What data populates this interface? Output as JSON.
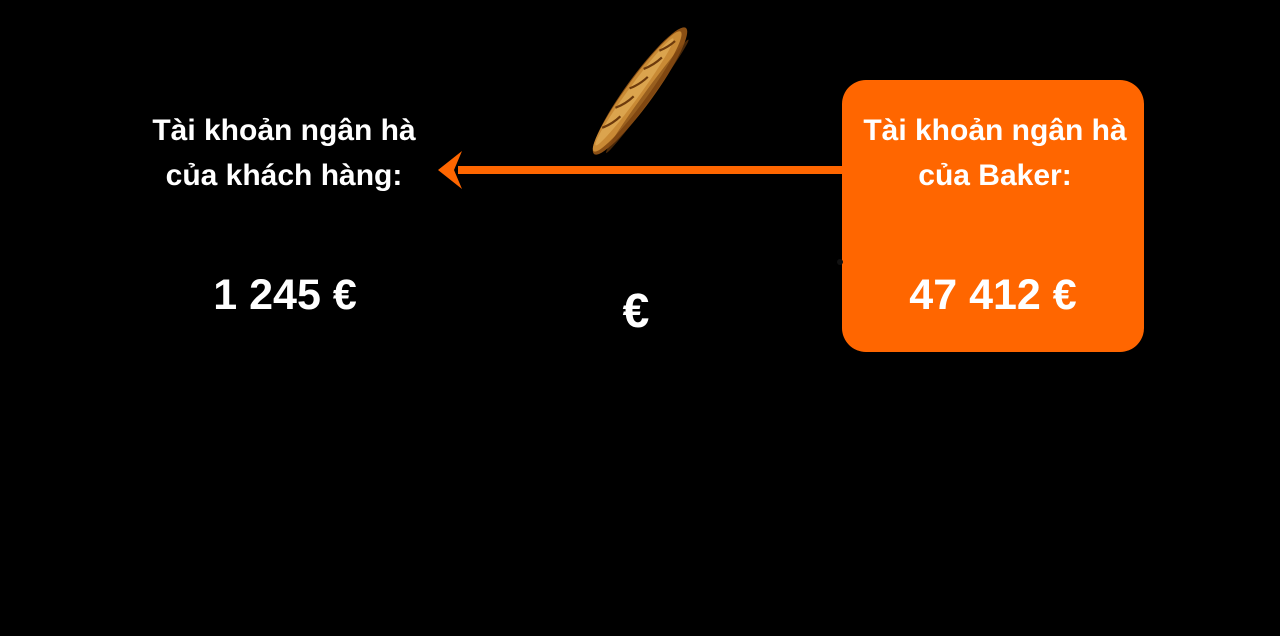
{
  "colors": {
    "accent": "#ff6600",
    "background": "#000000",
    "text": "#ffffff"
  },
  "customer_account": {
    "label": "Tài khoản ngân hà\ncủa khách hàng:",
    "balance": "1 245 €"
  },
  "baker_account": {
    "label": "Tài khoản ngân hà\ncủa Baker:",
    "balance": "47 412 €"
  },
  "transfer": {
    "currency_symbol": "€",
    "direction": "baker-to-customer",
    "item_icon": "baguette-icon"
  }
}
